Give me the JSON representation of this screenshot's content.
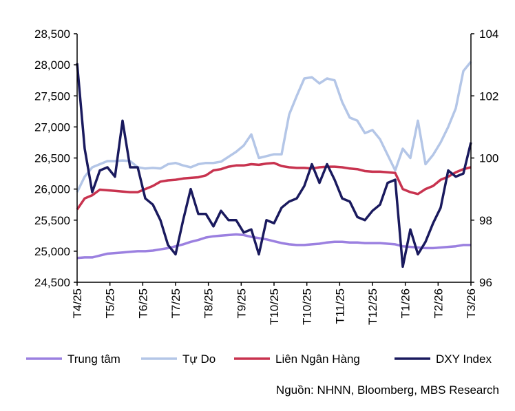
{
  "chart_data": {
    "type": "line",
    "title": "",
    "source": "Nguồn: NHNN, Bloomberg, MBS Research",
    "x_tick_labels": [
      "T4/25",
      "T5/25",
      "T6/25",
      "T7/25",
      "T8/25",
      "T9/25",
      "T10/25",
      "T10/25",
      "T11/25",
      "T12/25",
      "T1/26",
      "T2/26",
      "T3/26"
    ],
    "y_left": {
      "ylim": [
        24500,
        28500
      ],
      "ticks": [
        "24,500",
        "25,000",
        "25,500",
        "26,000",
        "26,500",
        "27,000",
        "27,500",
        "28,000",
        "28,500"
      ]
    },
    "y_right": {
      "ylim": [
        96,
        104
      ],
      "ticks": [
        "96",
        "98",
        "100",
        "102",
        "104"
      ]
    },
    "grid": false,
    "legend_position": "bottom",
    "x": [
      "2025-04-01",
      "2025-04-08",
      "2025-04-15",
      "2025-04-22",
      "2025-04-29",
      "2025-05-06",
      "2025-05-13",
      "2025-05-20",
      "2025-05-27",
      "2025-06-03",
      "2025-06-10",
      "2025-06-17",
      "2025-06-24",
      "2025-07-01",
      "2025-07-08",
      "2025-07-15",
      "2025-07-22",
      "2025-07-29",
      "2025-08-05",
      "2025-08-12",
      "2025-08-19",
      "2025-08-26",
      "2025-09-02",
      "2025-09-09",
      "2025-09-16",
      "2025-09-23",
      "2025-09-30",
      "2025-10-07",
      "2025-10-14",
      "2025-10-21",
      "2025-10-28",
      "2025-11-04",
      "2025-11-11",
      "2025-11-18",
      "2025-11-25",
      "2025-12-02",
      "2025-12-09",
      "2025-12-16",
      "2025-12-23",
      "2025-12-30",
      "2026-01-06",
      "2026-01-13",
      "2026-01-20",
      "2026-01-27",
      "2026-02-03",
      "2026-02-10",
      "2026-02-17",
      "2026-02-24",
      "2026-03-03",
      "2026-03-10",
      "2026-03-17",
      "2026-03-24",
      "2026-03-31"
    ],
    "series": [
      {
        "name": "Trung tâm",
        "axis": "left",
        "color": "#9b80e0",
        "values": [
          24890,
          24900,
          24900,
          24930,
          24960,
          24970,
          24980,
          24990,
          25000,
          25000,
          25010,
          25030,
          25050,
          25080,
          25110,
          25150,
          25180,
          25220,
          25240,
          25250,
          25260,
          25270,
          25260,
          25230,
          25210,
          25190,
          25160,
          25130,
          25110,
          25100,
          25100,
          25110,
          25120,
          25140,
          25150,
          25150,
          25140,
          25140,
          25130,
          25130,
          25130,
          25120,
          25110,
          25080,
          25070,
          25060,
          25050,
          25050,
          25060,
          25070,
          25080,
          25100,
          25100
        ]
      },
      {
        "name": "Tự Do",
        "axis": "left",
        "color": "#b4c6e7",
        "values": [
          25950,
          26200,
          26350,
          26400,
          26450,
          26450,
          26460,
          26450,
          26350,
          26330,
          26340,
          26330,
          26400,
          26420,
          26380,
          26350,
          26400,
          26420,
          26420,
          26440,
          26520,
          26600,
          26700,
          26880,
          26500,
          26530,
          26560,
          26560,
          27200,
          27500,
          27780,
          27800,
          27700,
          27780,
          27750,
          27400,
          27150,
          27100,
          26900,
          26950,
          26800,
          26550,
          26300,
          26650,
          26500,
          27100,
          26400,
          26550,
          26750,
          27000,
          27300,
          27900,
          28050
        ]
      },
      {
        "name": "Liên Ngân Hàng",
        "axis": "left",
        "color": "#c8334f",
        "values": [
          25670,
          25850,
          25900,
          25990,
          25980,
          25970,
          25960,
          25950,
          25950,
          26000,
          26050,
          26120,
          26140,
          26150,
          26170,
          26180,
          26190,
          26220,
          26300,
          26320,
          26360,
          26380,
          26380,
          26400,
          26390,
          26410,
          26420,
          26370,
          26350,
          26340,
          26340,
          26330,
          26350,
          26360,
          26360,
          26350,
          26330,
          26320,
          26290,
          26280,
          26280,
          26270,
          26260,
          26000,
          25950,
          25920,
          26000,
          26050,
          26150,
          26200,
          26270,
          26320,
          26350
        ]
      },
      {
        "name": "DXY Index",
        "axis": "right",
        "color": "#1a1a5e",
        "values": [
          103.05,
          100.3,
          98.9,
          99.6,
          99.7,
          99.4,
          101.2,
          99.7,
          99.7,
          98.7,
          98.5,
          98.0,
          97.2,
          96.9,
          98.0,
          99.0,
          98.2,
          98.2,
          97.8,
          98.3,
          98.0,
          98.0,
          97.6,
          97.7,
          96.9,
          98.0,
          97.9,
          98.4,
          98.6,
          98.7,
          99.1,
          99.8,
          99.2,
          99.8,
          99.3,
          98.7,
          98.6,
          98.1,
          98.0,
          98.3,
          98.5,
          99.2,
          99.3,
          96.5,
          97.7,
          96.9,
          97.3,
          97.9,
          98.4,
          99.6,
          99.4,
          99.5,
          100.5
        ]
      }
    ]
  }
}
